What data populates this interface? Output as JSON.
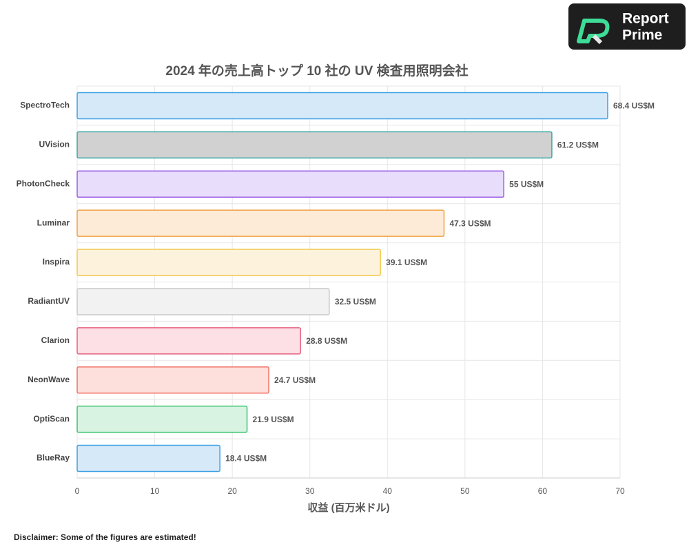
{
  "chart_data": {
    "type": "bar",
    "orientation": "horizontal",
    "title": "2024 年の売上高トップ 10 社の UV 検査用照明会社",
    "x_label": "収益 (百万米ドル)",
    "categories": [
      "SpectroTech",
      "UVision",
      "PhotonCheck",
      "Luminar",
      "Inspira",
      "RadiantUV",
      "Clarion",
      "NeonWave",
      "OptiScan",
      "BlueRay"
    ],
    "values": [
      68.4,
      61.2,
      55,
      47.3,
      39.1,
      32.5,
      28.8,
      24.7,
      21.9,
      18.4
    ],
    "value_labels": [
      "68.4 US$M",
      "61.2 US$M",
      "55 US$M",
      "47.3 US$M",
      "39.1 US$M",
      "32.5 US$M",
      "28.8 US$M",
      "24.7 US$M",
      "21.9 US$M",
      "18.4 US$M"
    ],
    "colors": [
      "#3ba0e6",
      "#3aa6a6",
      "#9b5de5",
      "#f0a040",
      "#f2c84b",
      "#c8c8c8",
      "#e8607f",
      "#f07060",
      "#3cc26e",
      "#3ba0e6"
    ],
    "fill_colors": [
      "#d6e9f8",
      "#d0d1d0",
      "#e9ddfc",
      "#fdebd8",
      "#fdf3dc",
      "#f2f2f2",
      "#fde0e6",
      "#fde0dc",
      "#d8f3e2",
      "#d6e9f8"
    ],
    "xlim": [
      0,
      70
    ],
    "xticks": [
      0,
      10,
      20,
      30,
      40,
      50,
      60,
      70
    ],
    "grid": true
  },
  "disclaimer": "Disclaimer: Some of the figures are estimated!",
  "logo": {
    "line1": "Report",
    "line2": "Prime"
  }
}
